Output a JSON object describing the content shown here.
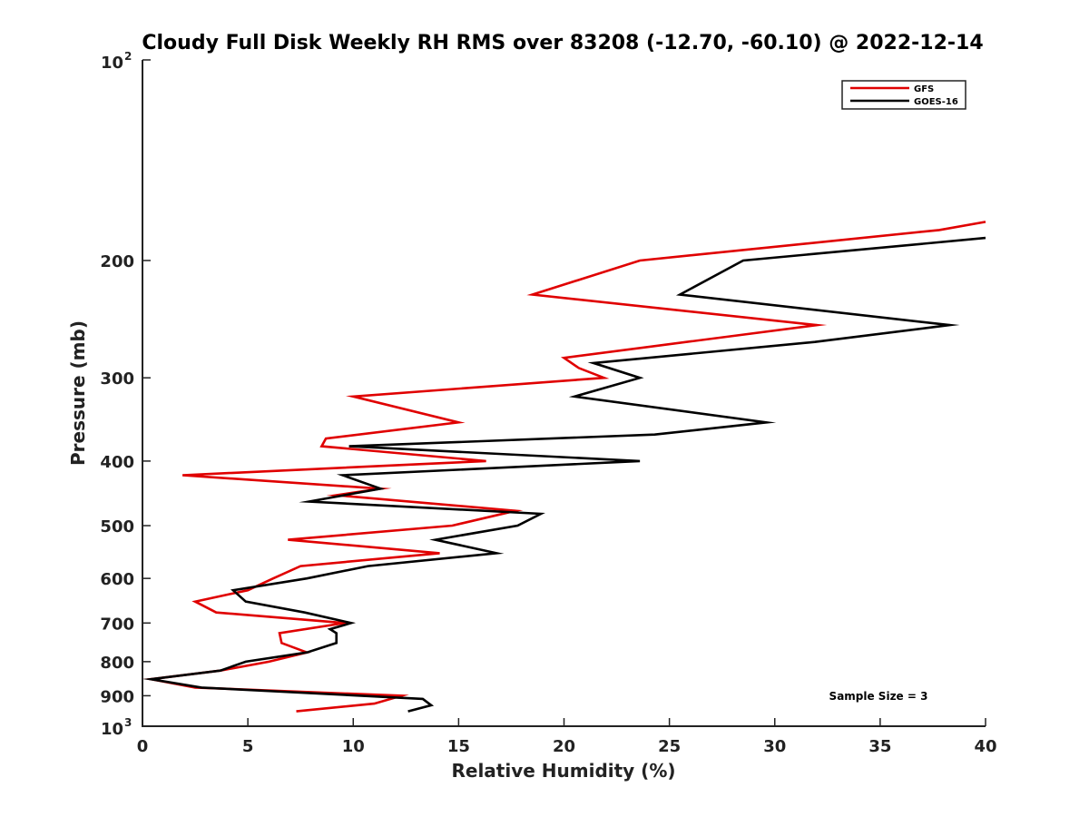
{
  "chart_data": {
    "type": "line",
    "title": "Cloudy Full Disk Weekly RH RMS over 83208 (-12.70, -60.10) @ 2022-12-14",
    "xlabel": "Relative Humidity (%)",
    "ylabel": "Pressure (mb)",
    "xlim": [
      0,
      40
    ],
    "ylim": [
      100,
      1000
    ],
    "y_scale": "log",
    "y_reversed": true,
    "grid": false,
    "legend_position": "top-right",
    "x_ticks": [
      "0",
      "5",
      "10",
      "15",
      "20",
      "25",
      "30",
      "35",
      "40"
    ],
    "y_ticks": [
      {
        "value": 100,
        "base": "10",
        "exp": "2"
      },
      {
        "value": 200,
        "label": "200"
      },
      {
        "value": 300,
        "label": "300"
      },
      {
        "value": 400,
        "label": "400"
      },
      {
        "value": 500,
        "label": "500"
      },
      {
        "value": 600,
        "label": "600"
      },
      {
        "value": 700,
        "label": "700"
      },
      {
        "value": 800,
        "label": "800"
      },
      {
        "value": 900,
        "label": "900"
      },
      {
        "value": 1000,
        "base": "10",
        "exp": "3"
      }
    ],
    "annotation": "Sample Size = 3",
    "series": [
      {
        "name": "GFS",
        "color": "#e00000",
        "points": [
          [
            40.0,
            175
          ],
          [
            37.8,
            180
          ],
          [
            23.6,
            200
          ],
          [
            18.5,
            225
          ],
          [
            32.0,
            250
          ],
          [
            20.0,
            280
          ],
          [
            20.7,
            290
          ],
          [
            21.9,
            300
          ],
          [
            10.0,
            320
          ],
          [
            15.0,
            350
          ],
          [
            8.7,
            370
          ],
          [
            8.5,
            380
          ],
          [
            16.3,
            400
          ],
          [
            1.9,
            420
          ],
          [
            11.3,
            440
          ],
          [
            9.2,
            450
          ],
          [
            17.7,
            475
          ],
          [
            14.7,
            500
          ],
          [
            6.9,
            525
          ],
          [
            14.1,
            550
          ],
          [
            7.5,
            575
          ],
          [
            6.2,
            600
          ],
          [
            5.0,
            625
          ],
          [
            2.5,
            650
          ],
          [
            3.5,
            675
          ],
          [
            9.6,
            700
          ],
          [
            6.5,
            725
          ],
          [
            6.6,
            750
          ],
          [
            7.8,
            775
          ],
          [
            6.0,
            800
          ],
          [
            3.7,
            825
          ],
          [
            0.4,
            850
          ],
          [
            2.5,
            875
          ],
          [
            12.3,
            900
          ],
          [
            11.0,
            925
          ],
          [
            7.3,
            950
          ]
        ]
      },
      {
        "name": "GOES-16",
        "color": "#000000",
        "points": [
          [
            40.0,
            185
          ],
          [
            28.5,
            200
          ],
          [
            25.5,
            225
          ],
          [
            38.3,
            250
          ],
          [
            31.9,
            265
          ],
          [
            21.4,
            285
          ],
          [
            23.6,
            300
          ],
          [
            20.5,
            320
          ],
          [
            29.6,
            350
          ],
          [
            24.3,
            365
          ],
          [
            9.8,
            380
          ],
          [
            23.6,
            400
          ],
          [
            9.5,
            420
          ],
          [
            11.3,
            440
          ],
          [
            7.9,
            460
          ],
          [
            18.9,
            480
          ],
          [
            17.8,
            500
          ],
          [
            13.9,
            525
          ],
          [
            16.8,
            550
          ],
          [
            10.7,
            575
          ],
          [
            7.8,
            600
          ],
          [
            4.3,
            625
          ],
          [
            4.9,
            650
          ],
          [
            7.7,
            675
          ],
          [
            9.9,
            700
          ],
          [
            8.9,
            715
          ],
          [
            9.2,
            725
          ],
          [
            9.2,
            750
          ],
          [
            7.8,
            775
          ],
          [
            4.9,
            800
          ],
          [
            3.7,
            825
          ],
          [
            0.4,
            850
          ],
          [
            2.8,
            875
          ],
          [
            13.3,
            910
          ],
          [
            13.7,
            930
          ],
          [
            12.6,
            950
          ]
        ]
      }
    ]
  }
}
